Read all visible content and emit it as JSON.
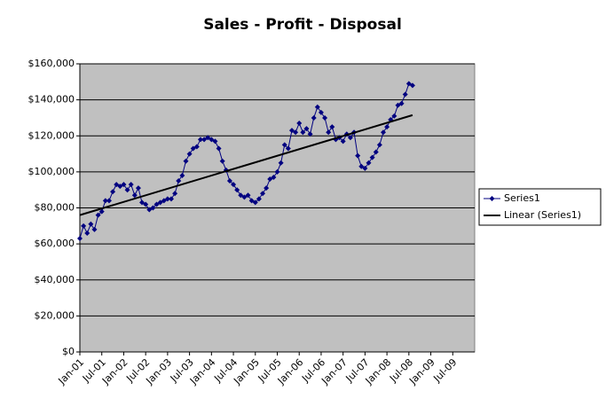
{
  "chart_data": {
    "type": "line",
    "title": "Sales - Profit - Disposal",
    "x": [
      "2001-01",
      "2001-02",
      "2001-03",
      "2001-04",
      "2001-05",
      "2001-06",
      "2001-07",
      "2001-08",
      "2001-09",
      "2001-10",
      "2001-11",
      "2001-12",
      "2002-01",
      "2002-02",
      "2002-03",
      "2002-04",
      "2002-05",
      "2002-06",
      "2002-07",
      "2002-08",
      "2002-09",
      "2002-10",
      "2002-11",
      "2002-12",
      "2003-01",
      "2003-02",
      "2003-03",
      "2003-04",
      "2003-05",
      "2003-06",
      "2003-07",
      "2003-08",
      "2003-09",
      "2003-10",
      "2003-11",
      "2003-12",
      "2004-01",
      "2004-02",
      "2004-03",
      "2004-04",
      "2004-05",
      "2004-06",
      "2004-07",
      "2004-08",
      "2004-09",
      "2004-10",
      "2004-11",
      "2004-12",
      "2005-01",
      "2005-02",
      "2005-03",
      "2005-04",
      "2005-05",
      "2005-06",
      "2005-07",
      "2005-08",
      "2005-09",
      "2005-10",
      "2005-11",
      "2005-12",
      "2006-01",
      "2006-02",
      "2006-03",
      "2006-04",
      "2006-05",
      "2006-06",
      "2006-07",
      "2006-08",
      "2006-09",
      "2006-10",
      "2006-11",
      "2006-12",
      "2007-01",
      "2007-02",
      "2007-03",
      "2007-04",
      "2007-05",
      "2007-06",
      "2007-07",
      "2007-08",
      "2007-09",
      "2007-10",
      "2007-11",
      "2007-12",
      "2008-01",
      "2008-02",
      "2008-03",
      "2008-04",
      "2008-05",
      "2008-06",
      "2008-07",
      "2008-08"
    ],
    "series": [
      {
        "name": "Series1",
        "color": "#000080",
        "marker": "diamond",
        "values": [
          63000,
          70000,
          66000,
          71000,
          68000,
          76000,
          78000,
          84000,
          84000,
          89000,
          93000,
          92000,
          93000,
          90000,
          93000,
          87000,
          91000,
          83000,
          82000,
          79000,
          80000,
          82000,
          83000,
          84000,
          85000,
          85000,
          88000,
          95000,
          98000,
          106000,
          110000,
          113000,
          114000,
          118000,
          118000,
          119000,
          118000,
          117000,
          113000,
          106000,
          101000,
          95000,
          93000,
          90000,
          87000,
          86000,
          87000,
          84000,
          83000,
          85000,
          88000,
          91000,
          96000,
          97000,
          100000,
          105000,
          115000,
          113000,
          123000,
          122000,
          127000,
          122000,
          124000,
          121000,
          130000,
          136000,
          133000,
          130000,
          122000,
          125000,
          118000,
          119000,
          117000,
          121000,
          119000,
          122000,
          109000,
          103000,
          102000,
          105000,
          108000,
          111000,
          115000,
          122000,
          125000,
          129000,
          131000,
          137000,
          138000,
          143000,
          149000,
          148000
        ]
      },
      {
        "name": "Linear (Series1)",
        "color": "#000000",
        "x": [
          "2001-01",
          "2008-08"
        ],
        "values": [
          76000,
          131500
        ]
      }
    ],
    "xlim": [
      "2001-01",
      "2010-01"
    ],
    "xticks": [
      {
        "value": "2001-01",
        "label": "Jan-01"
      },
      {
        "value": "2001-07",
        "label": "Jul-01"
      },
      {
        "value": "2002-01",
        "label": "Jan-02"
      },
      {
        "value": "2002-07",
        "label": "Jul-02"
      },
      {
        "value": "2003-01",
        "label": "Jan-03"
      },
      {
        "value": "2003-07",
        "label": "Jul-03"
      },
      {
        "value": "2004-01",
        "label": "Jan-04"
      },
      {
        "value": "2004-07",
        "label": "Jul-04"
      },
      {
        "value": "2005-01",
        "label": "Jan-05"
      },
      {
        "value": "2005-07",
        "label": "Jul-05"
      },
      {
        "value": "2006-01",
        "label": "Jan-06"
      },
      {
        "value": "2006-07",
        "label": "Jul-06"
      },
      {
        "value": "2007-01",
        "label": "Jan-07"
      },
      {
        "value": "2007-07",
        "label": "Jul-07"
      },
      {
        "value": "2008-01",
        "label": "Jan-08"
      },
      {
        "value": "2008-07",
        "label": "Jul-08"
      },
      {
        "value": "2009-01",
        "label": "Jan-09"
      },
      {
        "value": "2009-07",
        "label": "Jul-09"
      }
    ],
    "ylim": [
      0,
      160000
    ],
    "yticks": [
      {
        "value": 0,
        "label": "$0"
      },
      {
        "value": 20000,
        "label": "$20,000"
      },
      {
        "value": 40000,
        "label": "$40,000"
      },
      {
        "value": 60000,
        "label": "$60,000"
      },
      {
        "value": 80000,
        "label": "$80,000"
      },
      {
        "value": 100000,
        "label": "$100,000"
      },
      {
        "value": 120000,
        "label": "$120,000"
      },
      {
        "value": 140000,
        "label": "$140,000"
      },
      {
        "value": 160000,
        "label": "$160,000"
      }
    ],
    "grid": true,
    "plot_background": "#c0c0c0",
    "legend": "right"
  }
}
